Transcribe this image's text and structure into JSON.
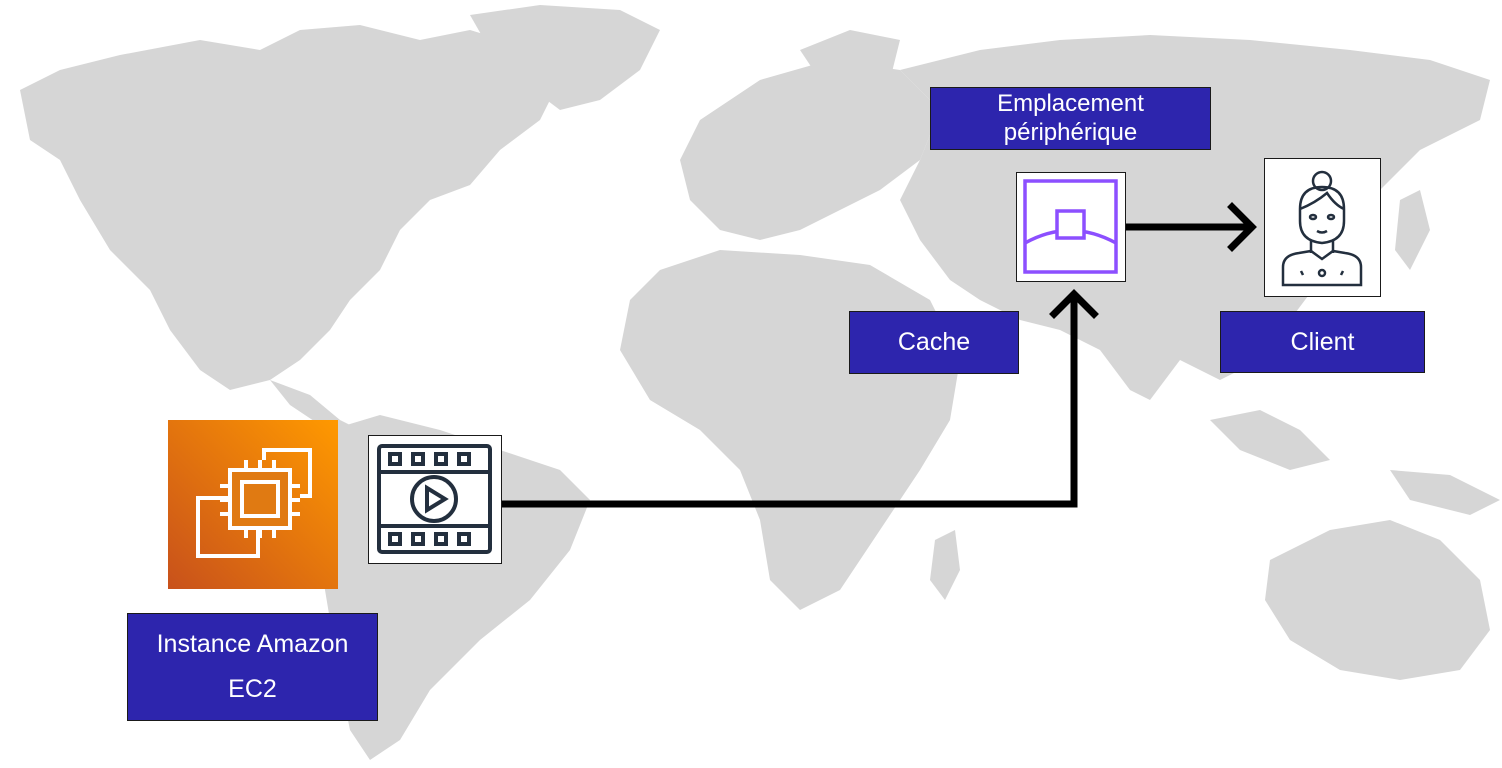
{
  "labels": {
    "edge_location": [
      "Emplacement",
      "périphérique"
    ],
    "cache": "Cache",
    "client": "Client",
    "ec2": [
      "Instance Amazon",
      "EC2"
    ]
  },
  "icons": {
    "ec2": "ec2-chip-icon",
    "video": "video-film-icon",
    "edge": "edge-location-icon",
    "client": "user-icon"
  },
  "colors": {
    "label_bg": "#2d25ad",
    "map_land": "#d6d6d6",
    "ec2_gradient_start": "#c8511b",
    "ec2_gradient_end": "#ff9900",
    "edge_icon_stroke": "#8c4fff",
    "icon_dark": "#232f3e"
  }
}
